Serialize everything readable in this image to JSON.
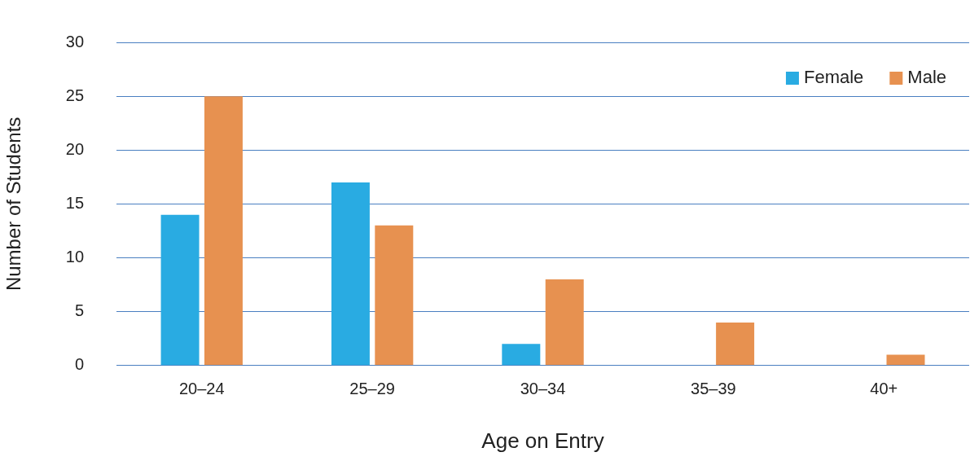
{
  "chart_data": {
    "type": "bar",
    "xlabel": "Age on Entry",
    "ylabel": "Number of Students",
    "categories": [
      "20–24",
      "25–29",
      "30–34",
      "35–39",
      "40+"
    ],
    "series": [
      {
        "name": "Female",
        "color": "#29abe2",
        "values": [
          14,
          17,
          2,
          0,
          0
        ]
      },
      {
        "name": "Male",
        "color": "#e79150",
        "values": [
          25,
          13,
          8,
          4,
          1
        ]
      }
    ],
    "ylim": [
      0,
      30
    ],
    "yticks": [
      0,
      5,
      10,
      15,
      20,
      25,
      30
    ],
    "grid": "y",
    "legend": "top right"
  }
}
